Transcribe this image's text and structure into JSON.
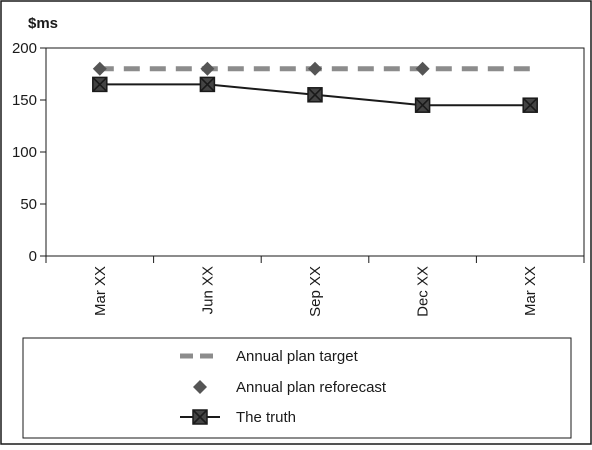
{
  "chart_data": {
    "type": "line",
    "ylabel": "$ms",
    "ylim": [
      0,
      200
    ],
    "yticks": [
      0,
      50,
      100,
      150,
      200
    ],
    "grid": false,
    "legend_position": "bottom",
    "categories": [
      "Mar XX",
      "Jun XX",
      "Sep XX",
      "Dec XX",
      "Mar XX"
    ],
    "series": [
      {
        "name": "Annual plan target",
        "style": "dashed-line",
        "color": "#8c8c8c",
        "values": [
          180,
          180,
          180,
          180,
          180
        ]
      },
      {
        "name": "Annual plan reforecast",
        "style": "diamond-markers",
        "color": "#555555",
        "values": [
          180,
          180,
          180,
          180,
          null
        ]
      },
      {
        "name": "The truth",
        "style": "line-with-x-square-markers",
        "color": "#1a1a1a",
        "marker_fill": "#444444",
        "values": [
          165,
          165,
          155,
          145,
          145
        ]
      }
    ]
  }
}
